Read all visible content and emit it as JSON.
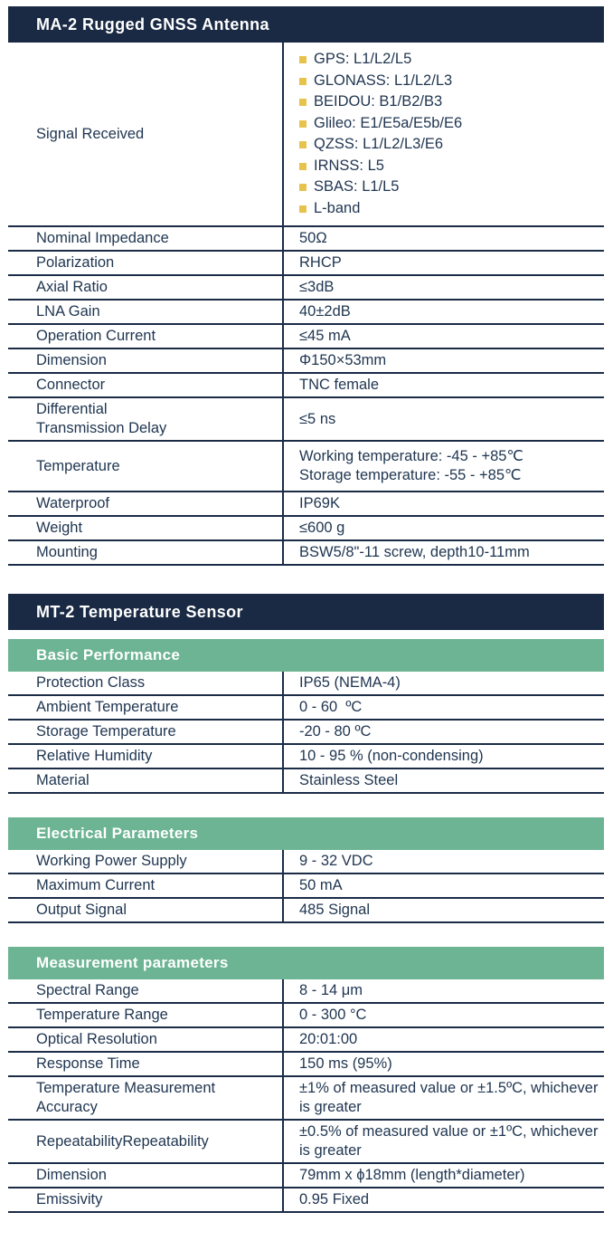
{
  "colors": {
    "header_bg": "#1a2a44",
    "subheader_bg": "#6cb493",
    "bullet": "#e7c24d",
    "table_line": "#1b2c47",
    "text": "#1f3550"
  },
  "ma2": {
    "title": "MA-2 Rugged GNSS Antenna",
    "rows": [
      {
        "label": "Signal Received",
        "bullets": [
          "GPS: L1/L2/L5",
          "GLONASS: L1/L2/L3",
          "BEIDOU: B1/B2/B3",
          "Glileo: E1/E5a/E5b/E6",
          "QZSS: L1/L2/L3/E6",
          "IRNSS: L5",
          "SBAS: L1/L5",
          "L-band"
        ]
      },
      {
        "label": "Nominal Impedance",
        "value": "50Ω"
      },
      {
        "label": "Polarization",
        "value": "RHCP"
      },
      {
        "label": "Axial Ratio",
        "value": "≤3dB"
      },
      {
        "label": "LNA Gain",
        "value": "40±2dB"
      },
      {
        "label": "Operation Current",
        "value": "≤45 mA"
      },
      {
        "label": "Dimension",
        "value": "Φ150×53mm"
      },
      {
        "label": "Connector",
        "value": "TNC female"
      },
      {
        "label": "Differential\nTransmission Delay",
        "value": "≤5 ns"
      },
      {
        "label": "Temperature",
        "value_lines": [
          "Working temperature: -45 - +85℃",
          "Storage temperature: -55 - +85℃"
        ]
      },
      {
        "label": "Waterproof",
        "value": "IP69K"
      },
      {
        "label": "Weight",
        "value": "≤600 g"
      },
      {
        "label": "Mounting",
        "value": "BSW5/8\"-11 screw, depth10-11mm"
      }
    ]
  },
  "mt2": {
    "title": "MT-2 Temperature Sensor",
    "subsections": [
      {
        "title": "Basic Performance",
        "rows": [
          {
            "label": "Protection Class",
            "value": "IP65 (NEMA-4)"
          },
          {
            "label": "Ambient Temperature",
            "value": "0 - 60  ºC"
          },
          {
            "label": "Storage Temperature",
            "value": "-20 - 80 ºC"
          },
          {
            "label": "Relative Humidity",
            "value": "10 - 95 % (non-condensing)"
          },
          {
            "label": "Material",
            "value": "Stainless Steel"
          }
        ]
      },
      {
        "title": "Electrical Parameters",
        "rows": [
          {
            "label": "Working Power Supply",
            "value": "9 - 32 VDC"
          },
          {
            "label": "Maximum Current",
            "value": "50 mA"
          },
          {
            "label": "Output Signal",
            "value": "485 Signal"
          }
        ]
      },
      {
        "title": "Measurement parameters",
        "rows": [
          {
            "label": "Spectral Range",
            "value": "8 - 14 μm"
          },
          {
            "label": "Temperature Range",
            "value": "0 - 300 °C"
          },
          {
            "label": "Optical Resolution",
            "value": "20:01:00"
          },
          {
            "label": "Response Time",
            "value": "150 ms (95%)"
          },
          {
            "label": "Temperature Measurement Accuracy",
            "value": "±1% of measured value or ±1.5ºC, whichever is greater"
          },
          {
            "label": "RepeatabilityRepeatability",
            "value": "±0.5% of measured value or ±1ºC, whichever is greater"
          },
          {
            "label": "Dimension",
            "value": "79mm x ϕ18mm (length*diameter)"
          },
          {
            "label": "Emissivity",
            "value": "0.95 Fixed"
          }
        ]
      }
    ]
  }
}
